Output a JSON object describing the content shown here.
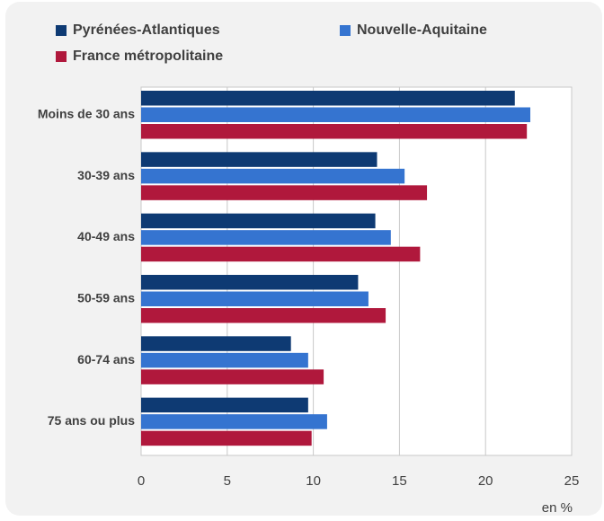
{
  "chart_data": {
    "type": "bar",
    "orientation": "horizontal",
    "categories": [
      "Moins de 30 ans",
      "30-39 ans",
      "40-49 ans",
      "50-59 ans",
      "60-74 ans",
      "75 ans ou plus"
    ],
    "series": [
      {
        "name": "Pyrénées-Atlantiques",
        "color": "#0e3a73",
        "values": [
          21.7,
          13.7,
          13.6,
          12.6,
          8.7,
          9.7
        ]
      },
      {
        "name": "Nouvelle-Aquitaine",
        "color": "#3574d0",
        "values": [
          22.6,
          15.3,
          14.5,
          13.2,
          9.7,
          10.8
        ]
      },
      {
        "name": "France métropolitaine",
        "color": "#b0183c",
        "values": [
          22.4,
          16.6,
          16.2,
          14.2,
          10.6,
          9.9
        ]
      }
    ],
    "xlim": [
      0,
      25
    ],
    "xticks": [
      0,
      5,
      10,
      15,
      20,
      25
    ],
    "xlabel": "en %",
    "grid": true,
    "legend": "top"
  }
}
